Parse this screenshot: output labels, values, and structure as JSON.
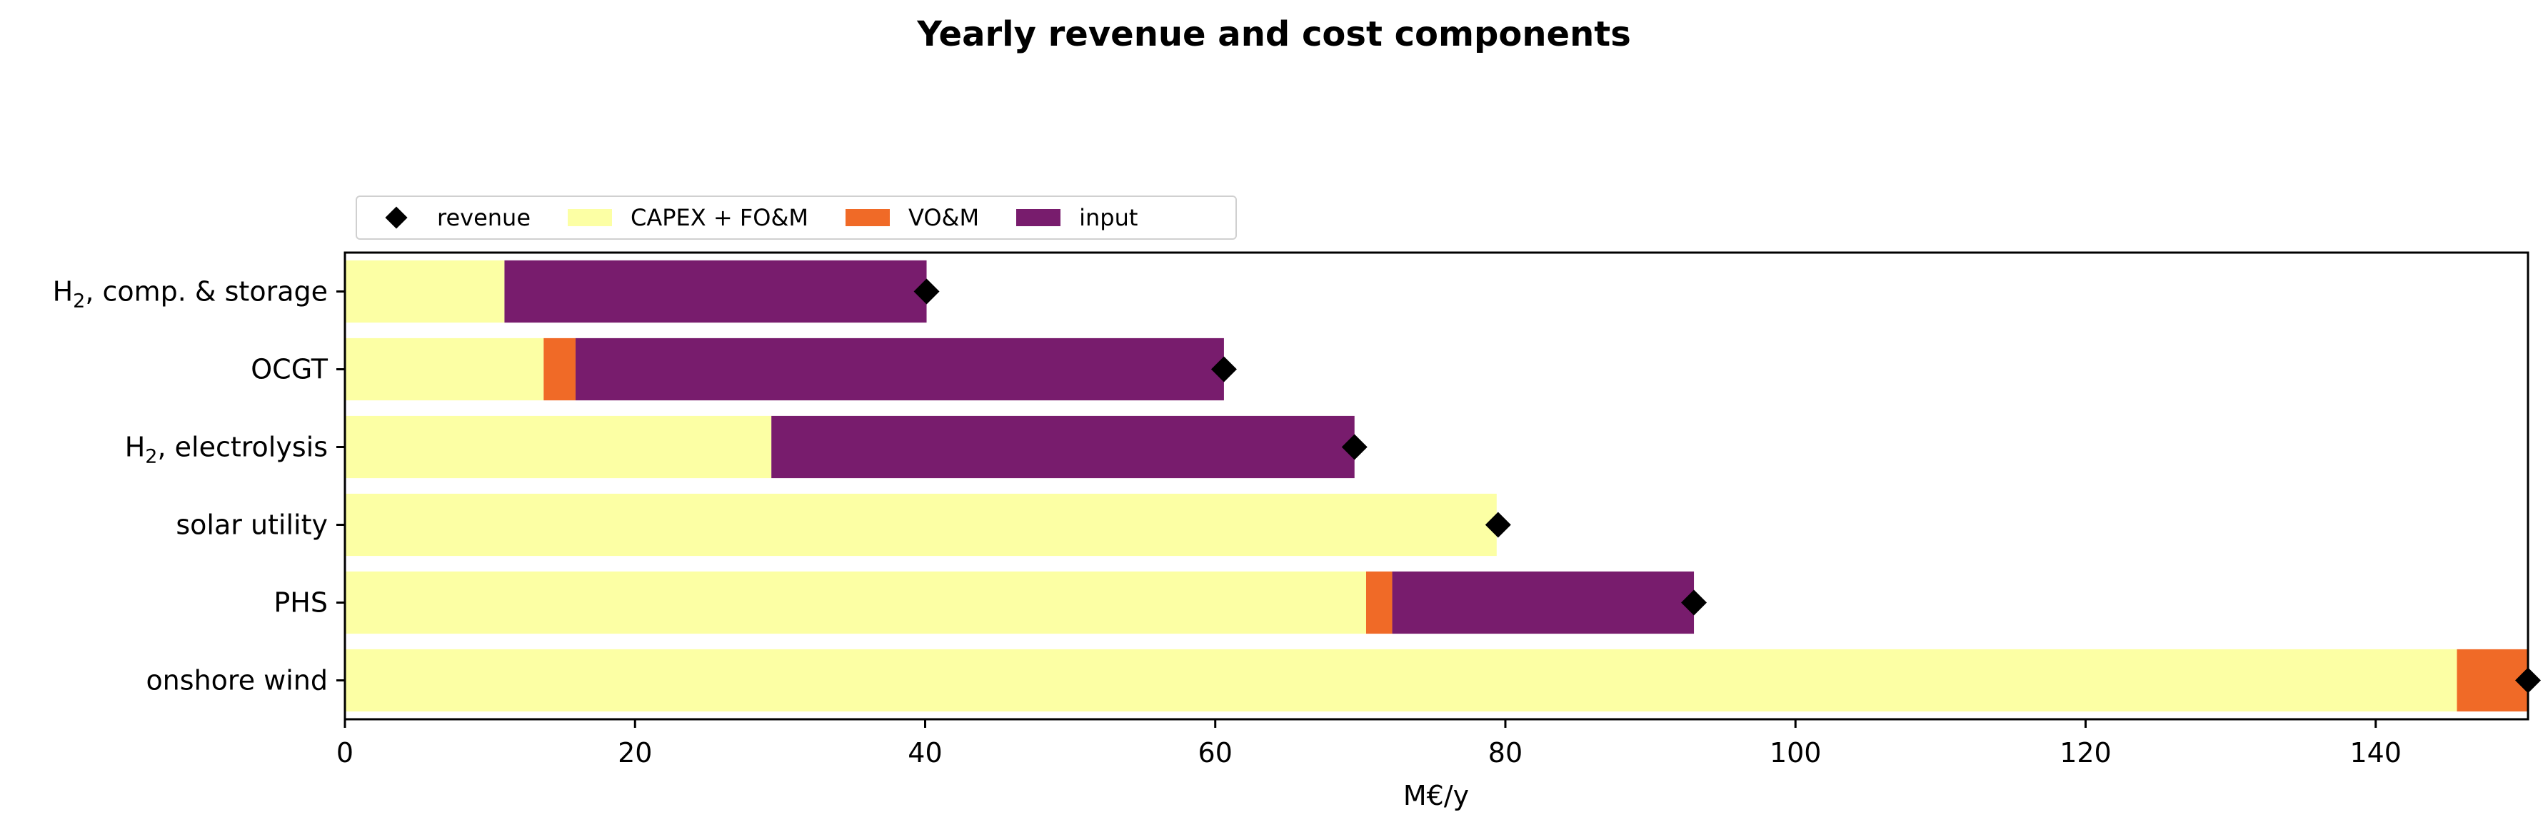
{
  "chart_data": {
    "type": "bar",
    "orientation": "horizontal",
    "stacked": true,
    "title": "Yearly revenue and cost components",
    "xlabel": "M€/y",
    "ylabel": "",
    "xlim": [
      0,
      150.5
    ],
    "xticks": [
      0,
      20,
      40,
      60,
      80,
      100,
      120,
      140
    ],
    "categories": [
      {
        "pre": "H",
        "sub": "2",
        "post": ", comp. & storage"
      },
      {
        "pre": "OCGT",
        "sub": "",
        "post": ""
      },
      {
        "pre": "H",
        "sub": "2",
        "post": ", electrolysis"
      },
      {
        "pre": "solar utility",
        "sub": "",
        "post": ""
      },
      {
        "pre": "PHS",
        "sub": "",
        "post": ""
      },
      {
        "pre": "onshore wind",
        "sub": "",
        "post": ""
      }
    ],
    "series": [
      {
        "name": "CAPEX + FO&M",
        "color": "#fcffa4",
        "values": [
          11.0,
          13.7,
          29.4,
          79.4,
          70.4,
          145.6
        ]
      },
      {
        "name": "VO&M",
        "color": "#f06a27",
        "values": [
          0.0,
          2.2,
          0.0,
          0.0,
          1.8,
          4.9
        ]
      },
      {
        "name": "input",
        "color": "#781c6d",
        "values": [
          29.1,
          44.7,
          40.2,
          0.0,
          20.8,
          0.0
        ]
      }
    ],
    "revenue": {
      "name": "revenue",
      "color": "#000000",
      "values": [
        40.1,
        60.6,
        69.6,
        79.5,
        93.0,
        150.5
      ]
    },
    "legend": {
      "location": "upper-left-outside",
      "order": [
        "revenue",
        "CAPEX + FO&M",
        "VO&M",
        "input"
      ]
    }
  }
}
